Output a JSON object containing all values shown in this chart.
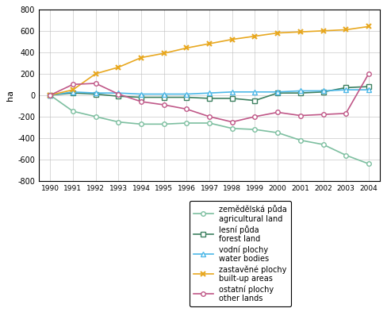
{
  "years": [
    1990,
    1991,
    1992,
    1993,
    1994,
    1995,
    1996,
    1997,
    1998,
    1999,
    2000,
    2001,
    2002,
    2003,
    2004
  ],
  "agricultural": [
    0,
    -150,
    -200,
    -250,
    -270,
    -270,
    -260,
    -260,
    -310,
    -320,
    -350,
    -420,
    -460,
    -560,
    -640
  ],
  "forest": [
    0,
    20,
    10,
    -10,
    -20,
    -20,
    -20,
    -30,
    -30,
    -50,
    20,
    20,
    30,
    70,
    80
  ],
  "water": [
    0,
    30,
    20,
    20,
    10,
    10,
    10,
    20,
    30,
    30,
    30,
    40,
    40,
    50,
    50
  ],
  "buildup": [
    0,
    50,
    200,
    260,
    350,
    390,
    440,
    480,
    520,
    550,
    580,
    590,
    600,
    610,
    640
  ],
  "other": [
    0,
    100,
    110,
    10,
    -60,
    -90,
    -130,
    -200,
    -250,
    -200,
    -160,
    -190,
    -180,
    -170,
    200
  ],
  "colors": {
    "agricultural": "#7dbfa0",
    "forest": "#3d8060",
    "water": "#4db8e8",
    "buildup": "#e8a820",
    "other": "#c05888"
  },
  "ylim": [
    -800,
    800
  ],
  "yticks": [
    -800,
    -600,
    -400,
    -200,
    0,
    200,
    400,
    600,
    800
  ],
  "ylabel": "ha",
  "legend_labels_line1": [
    "zemědělská půda",
    "lesní půda",
    "vodní plochy",
    "zastavěné plochy",
    "ostatní plochy"
  ],
  "legend_labels_line2": [
    "agricultural land",
    "forest land",
    "water bodies",
    "built-up areas",
    "other lands"
  ],
  "markers": [
    "o",
    "s",
    "^",
    "x",
    "o"
  ],
  "linestyles": [
    "-",
    "-",
    "-",
    "-",
    "-"
  ]
}
